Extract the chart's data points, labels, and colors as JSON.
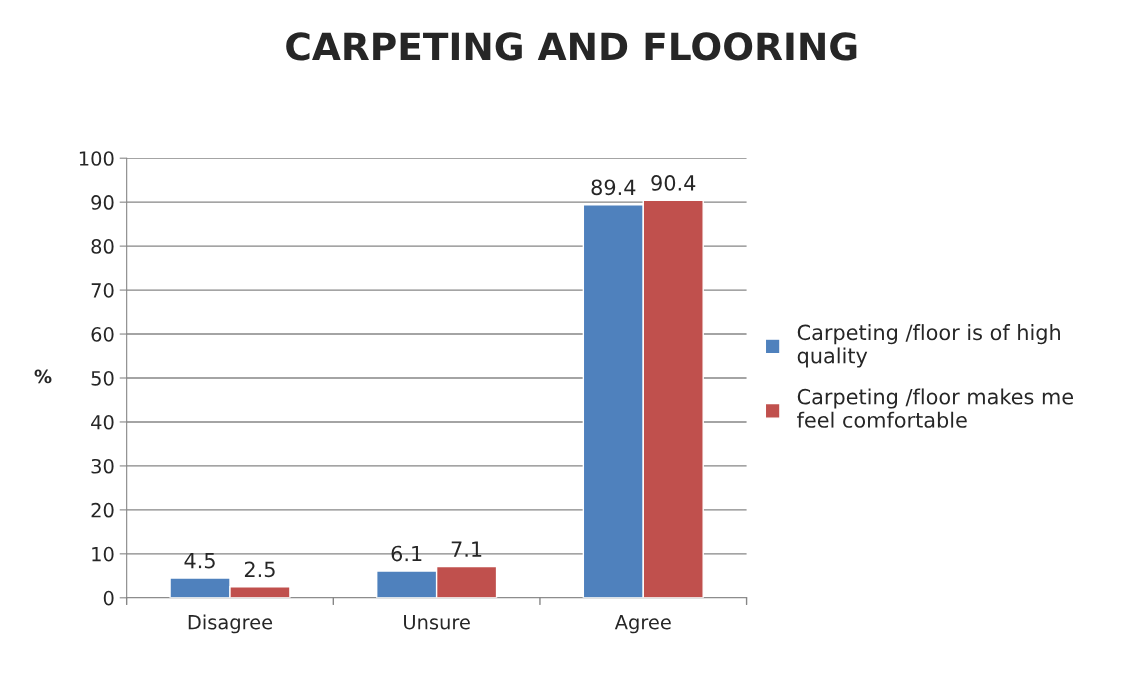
{
  "chart_data": {
    "type": "bar",
    "title": "CARPETING AND FLOORING",
    "ylabel": "%",
    "categories": [
      "Disagree",
      "Unsure",
      "Agree"
    ],
    "series": [
      {
        "name": "Carpeting /floor is of high quality",
        "color": "#4f81bd",
        "values": [
          4.5,
          6.1,
          89.4
        ]
      },
      {
        "name": "Carpeting /floor makes me feel comfortable",
        "color": "#c0504d",
        "values": [
          2.5,
          7.1,
          90.4
        ]
      }
    ],
    "ylim": [
      0,
      100
    ],
    "yticks": [
      0,
      10,
      20,
      30,
      40,
      50,
      60,
      70,
      80,
      90,
      100
    ],
    "grid": "y",
    "legend": "right",
    "data_labels": true
  }
}
